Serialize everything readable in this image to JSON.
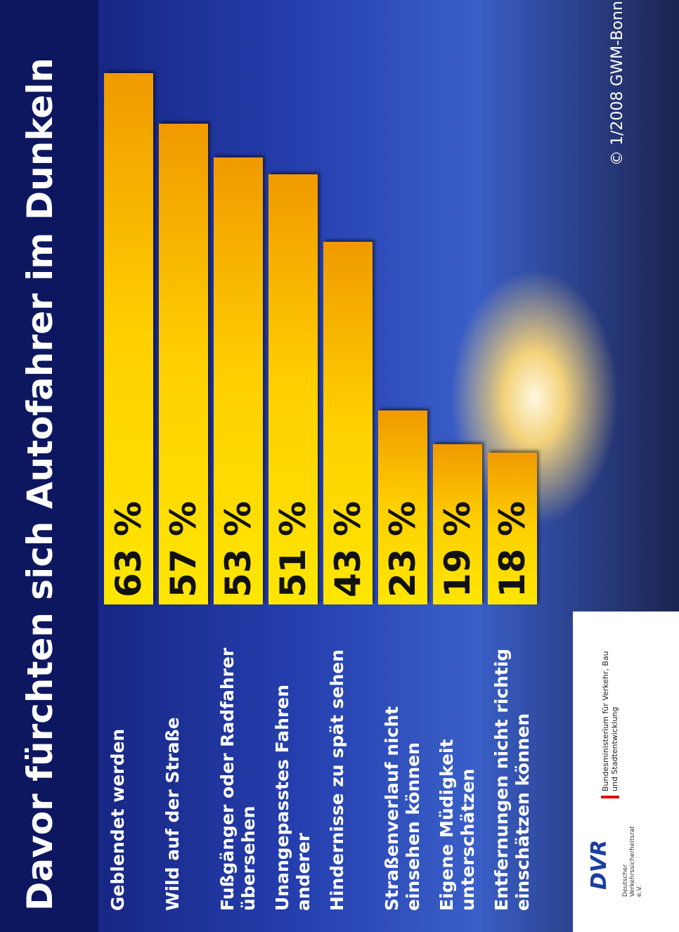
{
  "chart_data": {
    "type": "bar",
    "orientation": "horizontal",
    "title": "Davor fürchten sich Autofahrer im Dunkeln",
    "categories": [
      "Geblendet werden",
      "Wild auf der Straße",
      "Fußgänger oder Radfahrer übersehen",
      "Unangepasstes Fahren anderer",
      "Hindernisse zu spät sehen",
      "Straßenverlauf nicht einsehen können",
      "Eigene Müdigkeit unterschätzen",
      "Entfernungen nicht richtig einschätzen können"
    ],
    "values": [
      63,
      57,
      53,
      51,
      43,
      23,
      19,
      18
    ],
    "value_labels": [
      "63 %",
      "57 %",
      "53 %",
      "51 %",
      "43 %",
      "23 %",
      "19 %",
      "18 %"
    ],
    "color": "#f7b500",
    "source": "© 1/2008 GWM-Bonn",
    "logos": [
      "DVR",
      "Deutscher Verkehrssicherheitsrat e.V.",
      "Bundesministerium für Verkehr, Bau und Stadtentwicklung"
    ]
  }
}
